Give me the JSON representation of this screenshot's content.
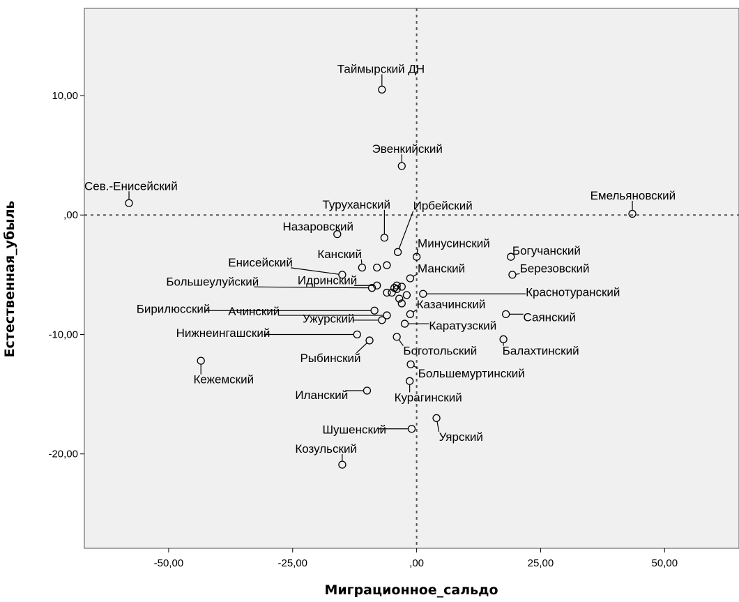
{
  "chart_data": {
    "type": "scatter",
    "xlabel": "Миграционное_сальдо",
    "ylabel": "Естественная_убыль",
    "xlim": [
      -67,
      65
    ],
    "ylim": [
      -27.9,
      17.3
    ],
    "x_ticks": [
      -50,
      -25,
      0,
      25,
      50
    ],
    "x_tick_labels": [
      "-50,00",
      "-25,00",
      ",00",
      "25,00",
      "50,00"
    ],
    "y_ticks": [
      10,
      0,
      -10,
      -20
    ],
    "y_tick_labels": [
      "10,00",
      ",00",
      "-10,00",
      "-20,00"
    ],
    "reference_lines": {
      "x": 0,
      "y": 0
    },
    "grid": false,
    "points": [
      {
        "label": "Таймырский ДН",
        "x": -7,
        "y": 10.5,
        "lx": -16,
        "ly": 11.9
      },
      {
        "label": "Эвенкийский",
        "x": -3,
        "y": 4.1,
        "lx": -9,
        "ly": 5.2
      },
      {
        "label": "Сев.-Енисейский",
        "x": -58,
        "y": 1.0,
        "lx": -67,
        "ly": 2.1
      },
      {
        "label": "Емельяновский",
        "x": 43.5,
        "y": 0.1,
        "lx": 35,
        "ly": 1.3
      },
      {
        "label": "Туруханский",
        "x": -6.5,
        "y": -1.9,
        "lx": -19,
        "ly": 0.55
      },
      {
        "label": "Ирбейский",
        "x": -3.8,
        "y": -3.1,
        "lx": -0.7,
        "ly": 0.45
      },
      {
        "label": "Назаровский",
        "x": -16,
        "y": -1.6,
        "lx": -27,
        "ly": -1.3
      },
      {
        "label": "Минусинский",
        "x": 0,
        "y": -3.5,
        "lx": 0.2,
        "ly": -2.7
      },
      {
        "label": "Богучанский",
        "x": 19,
        "y": -3.5,
        "lx": 19.3,
        "ly": -3.3
      },
      {
        "label": "Канский",
        "x": -11,
        "y": -4.4,
        "lx": -20,
        "ly": -3.6
      },
      {
        "label": "Енисейский",
        "x": -15,
        "y": -5.0,
        "lx": -38,
        "ly": -4.3
      },
      {
        "label": "Березовский",
        "x": 19.3,
        "y": -5.0,
        "lx": 20.8,
        "ly": -4.8
      },
      {
        "label": "Манский",
        "x": -1.3,
        "y": -5.3,
        "lx": 0.2,
        "ly": -4.8
      },
      {
        "label": "Идринский",
        "x": -8,
        "y": -5.9,
        "lx": -24,
        "ly": -5.8
      },
      {
        "label": "Большеулуйский",
        "x": -9,
        "y": -6.1,
        "lx": -50.5,
        "ly": -5.9
      },
      {
        "label": "Краснотуранский",
        "x": 1.3,
        "y": -6.6,
        "lx": 22,
        "ly": -6.8
      },
      {
        "label": "Бирилюсский",
        "x": -8.5,
        "y": -8.0,
        "lx": -56.5,
        "ly": -8.2
      },
      {
        "label": "Ачинский",
        "x": -6,
        "y": -8.4,
        "lx": -38,
        "ly": -8.4
      },
      {
        "label": "Казачинский",
        "x": -1.3,
        "y": -8.3,
        "lx": 0,
        "ly": -7.8
      },
      {
        "label": "Саянский",
        "x": 18,
        "y": -8.3,
        "lx": 21.5,
        "ly": -8.9
      },
      {
        "label": "Ужурский",
        "x": -7,
        "y": -8.8,
        "lx": -23,
        "ly": -9.0
      },
      {
        "label": "Каратузский",
        "x": -2.4,
        "y": -9.1,
        "lx": 2.5,
        "ly": -9.6
      },
      {
        "label": "Нижнеингашский",
        "x": -12,
        "y": -10.0,
        "lx": -48.5,
        "ly": -10.2
      },
      {
        "label": "Боготольский",
        "x": -4,
        "y": -10.2,
        "lx": -2.7,
        "ly": -11.7
      },
      {
        "label": "Балахтинский",
        "x": 17.5,
        "y": -10.4,
        "lx": 17.3,
        "ly": -11.7
      },
      {
        "label": "Рыбинский",
        "x": -9.5,
        "y": -10.5,
        "lx": -23.5,
        "ly": -12.3
      },
      {
        "label": "Кежемский",
        "x": -43.5,
        "y": -12.2,
        "lx": -45,
        "ly": -14.1
      },
      {
        "label": "Большемуртинский",
        "x": -1.2,
        "y": -12.5,
        "lx": 0.3,
        "ly": -13.6
      },
      {
        "label": "Иланский",
        "x": -10,
        "y": -14.7,
        "lx": -24.5,
        "ly": -15.4
      },
      {
        "label": "Курагинский",
        "x": -1.4,
        "y": -13.9,
        "lx": -4.5,
        "ly": -15.6
      },
      {
        "label": "Уярский",
        "x": 4,
        "y": -17.0,
        "lx": 4.5,
        "ly": -18.9
      },
      {
        "label": "Шушенский",
        "x": -1,
        "y": -17.9,
        "lx": -19,
        "ly": -18.3
      },
      {
        "label": "Козульский",
        "x": -15,
        "y": -20.9,
        "lx": -24.5,
        "ly": -19.9
      },
      {
        "label": "",
        "x": -4,
        "y": -6.2
      },
      {
        "label": "",
        "x": -3,
        "y": -6.0
      },
      {
        "label": "",
        "x": -5,
        "y": -6.5
      },
      {
        "label": "",
        "x": -3.5,
        "y": -7.0
      },
      {
        "label": "",
        "x": -3,
        "y": -7.4
      },
      {
        "label": "",
        "x": -4,
        "y": -5.9
      },
      {
        "label": "",
        "x": -2,
        "y": -6.7
      },
      {
        "label": "",
        "x": -6,
        "y": -6.5
      },
      {
        "label": "",
        "x": -4.5,
        "y": -6.1
      },
      {
        "label": "",
        "x": -6,
        "y": -4.2
      },
      {
        "label": "",
        "x": -8,
        "y": -4.4
      }
    ]
  }
}
